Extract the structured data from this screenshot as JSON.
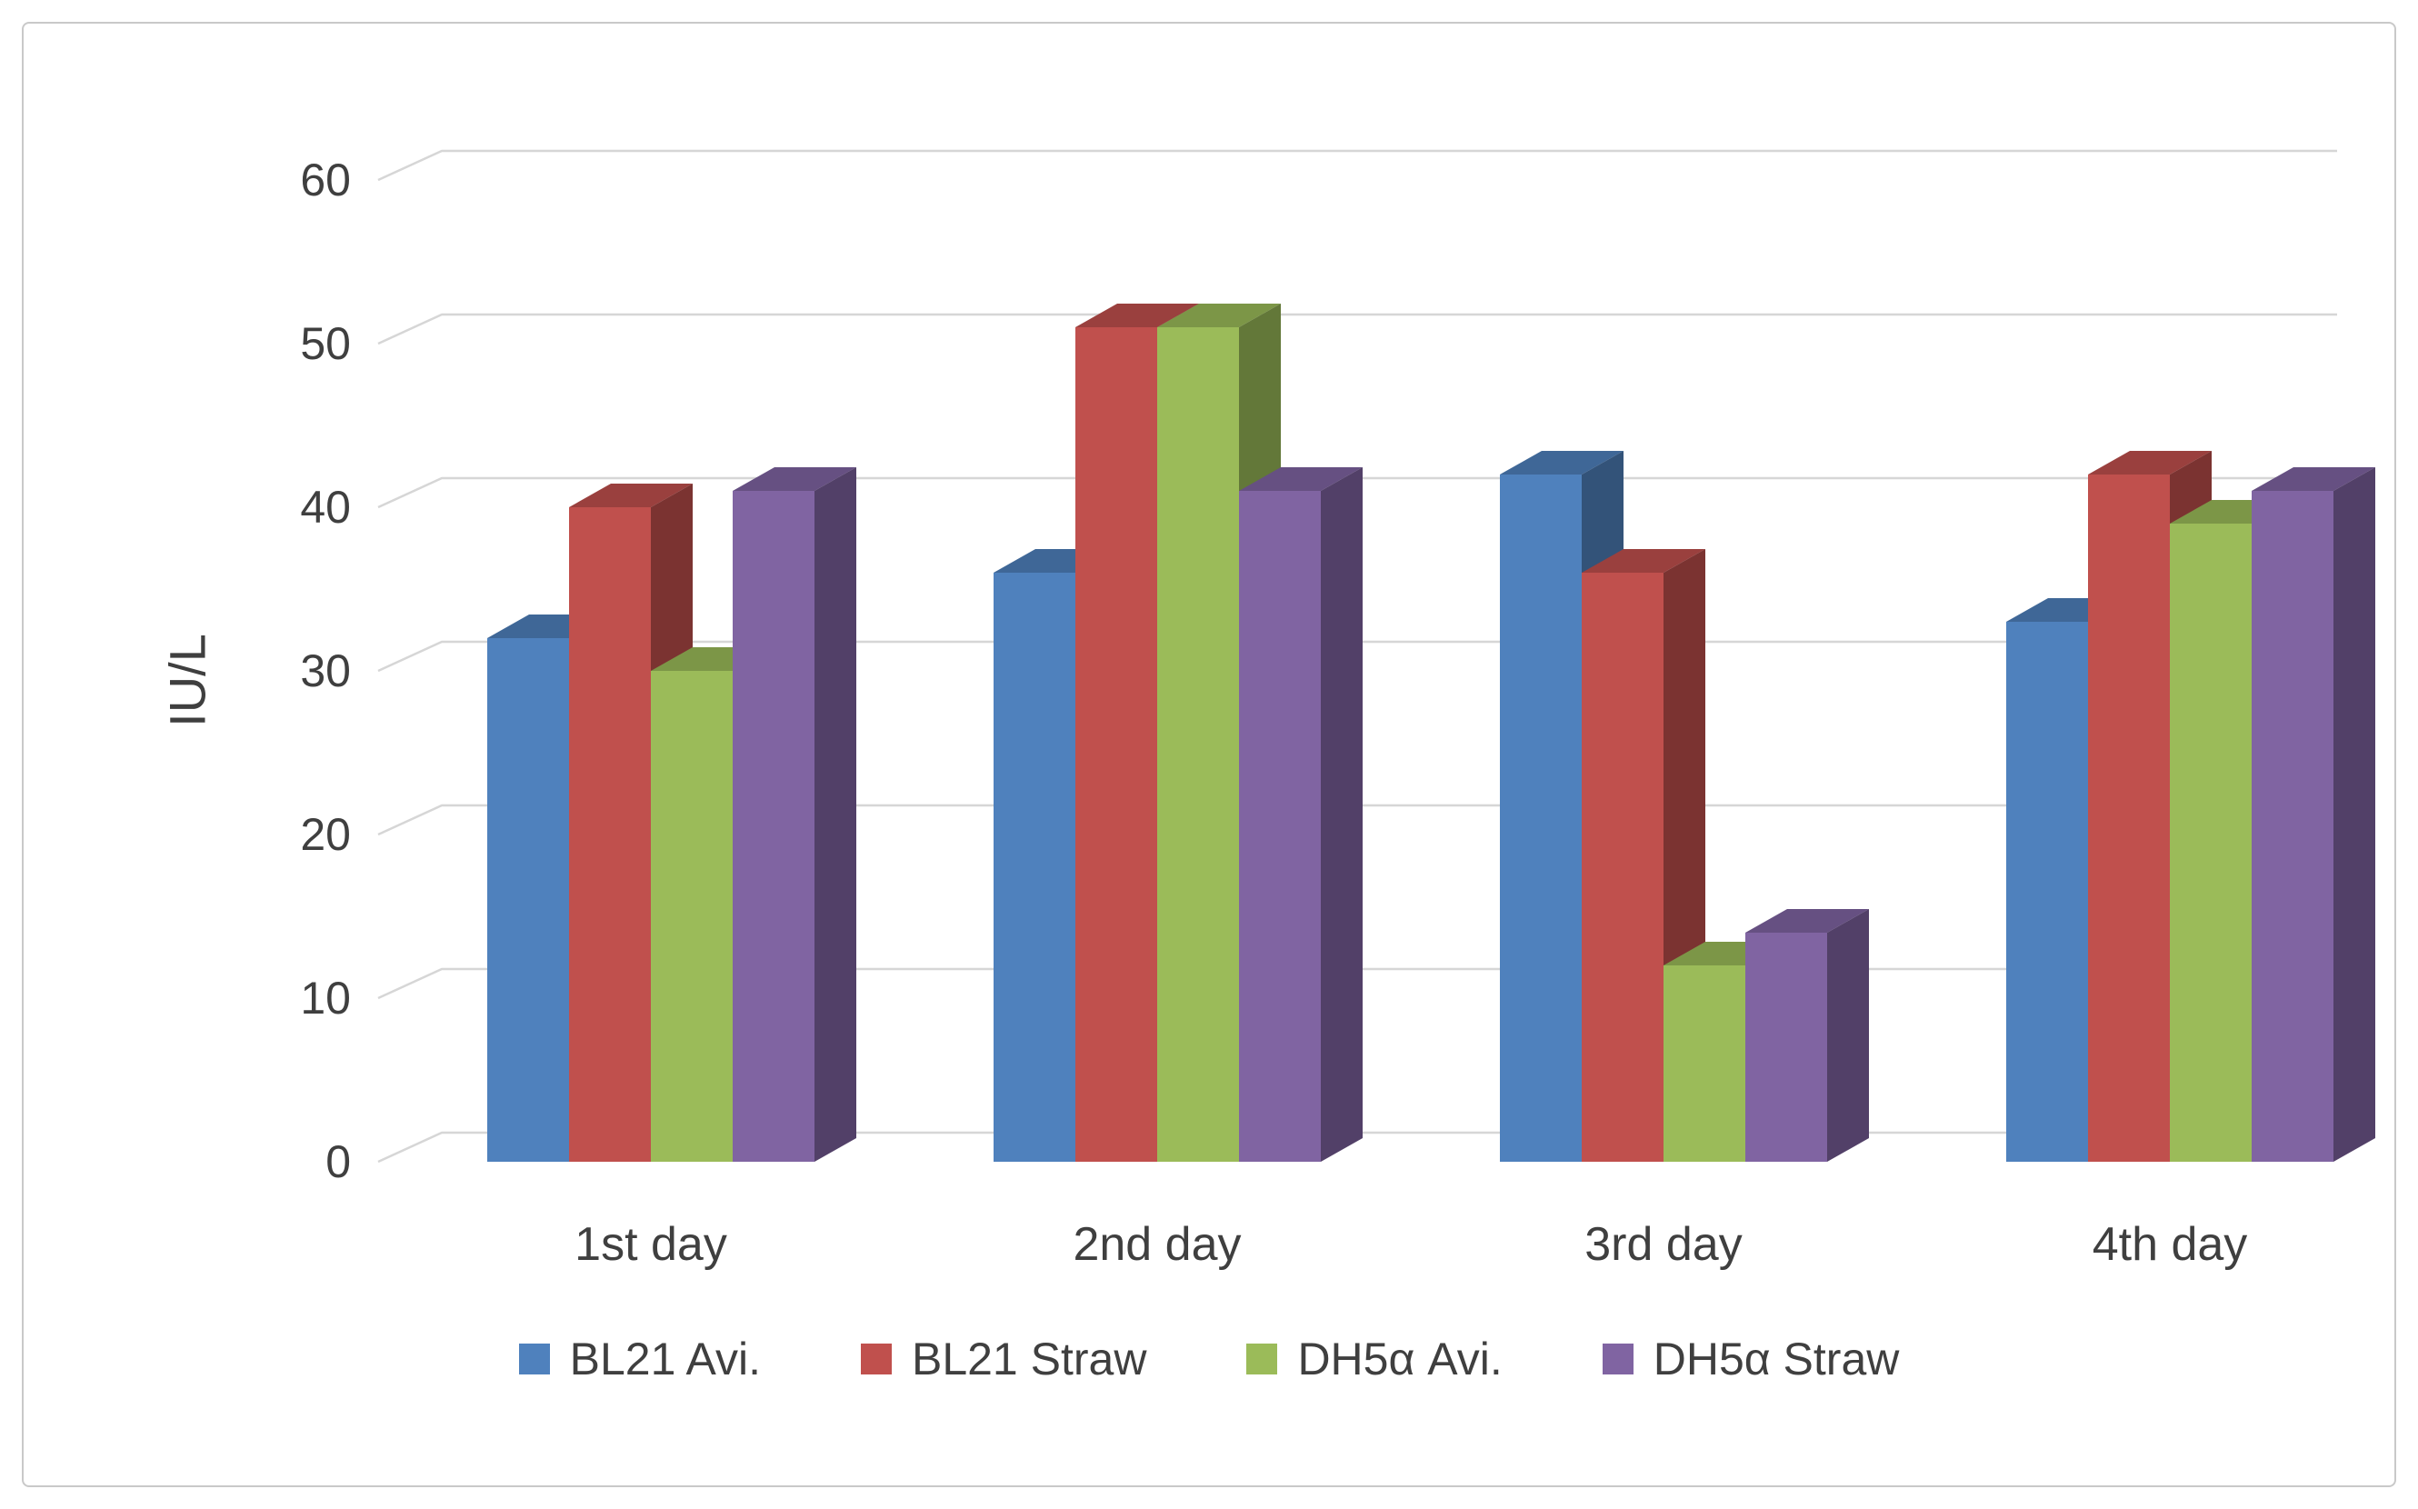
{
  "chart_data": {
    "type": "bar",
    "variant": "3d-clustered",
    "title": "",
    "xlabel": "",
    "ylabel": "IU/L",
    "categories": [
      "1st day",
      "2nd day",
      "3rd day",
      "4th day"
    ],
    "series": [
      {
        "name": "BL21 Avi.",
        "color": "#4F81BD",
        "values": [
          32,
          36,
          42,
          33
        ]
      },
      {
        "name": "BL21 Straw",
        "color": "#C0504D",
        "values": [
          40,
          51,
          36,
          42
        ]
      },
      {
        "name": "DH5α Avi.",
        "color": "#9BBB59",
        "values": [
          30,
          51,
          12,
          39
        ]
      },
      {
        "name": "DH5α Straw",
        "color": "#8064A2",
        "values": [
          41,
          41,
          14,
          41
        ]
      }
    ],
    "ylim": [
      0,
      60
    ],
    "yticks": [
      0,
      10,
      20,
      30,
      40,
      50,
      60
    ],
    "grid": true,
    "gridline_color": "#d6d6d6",
    "axis_text_color": "#3f3f3f",
    "legend_position": "bottom"
  }
}
